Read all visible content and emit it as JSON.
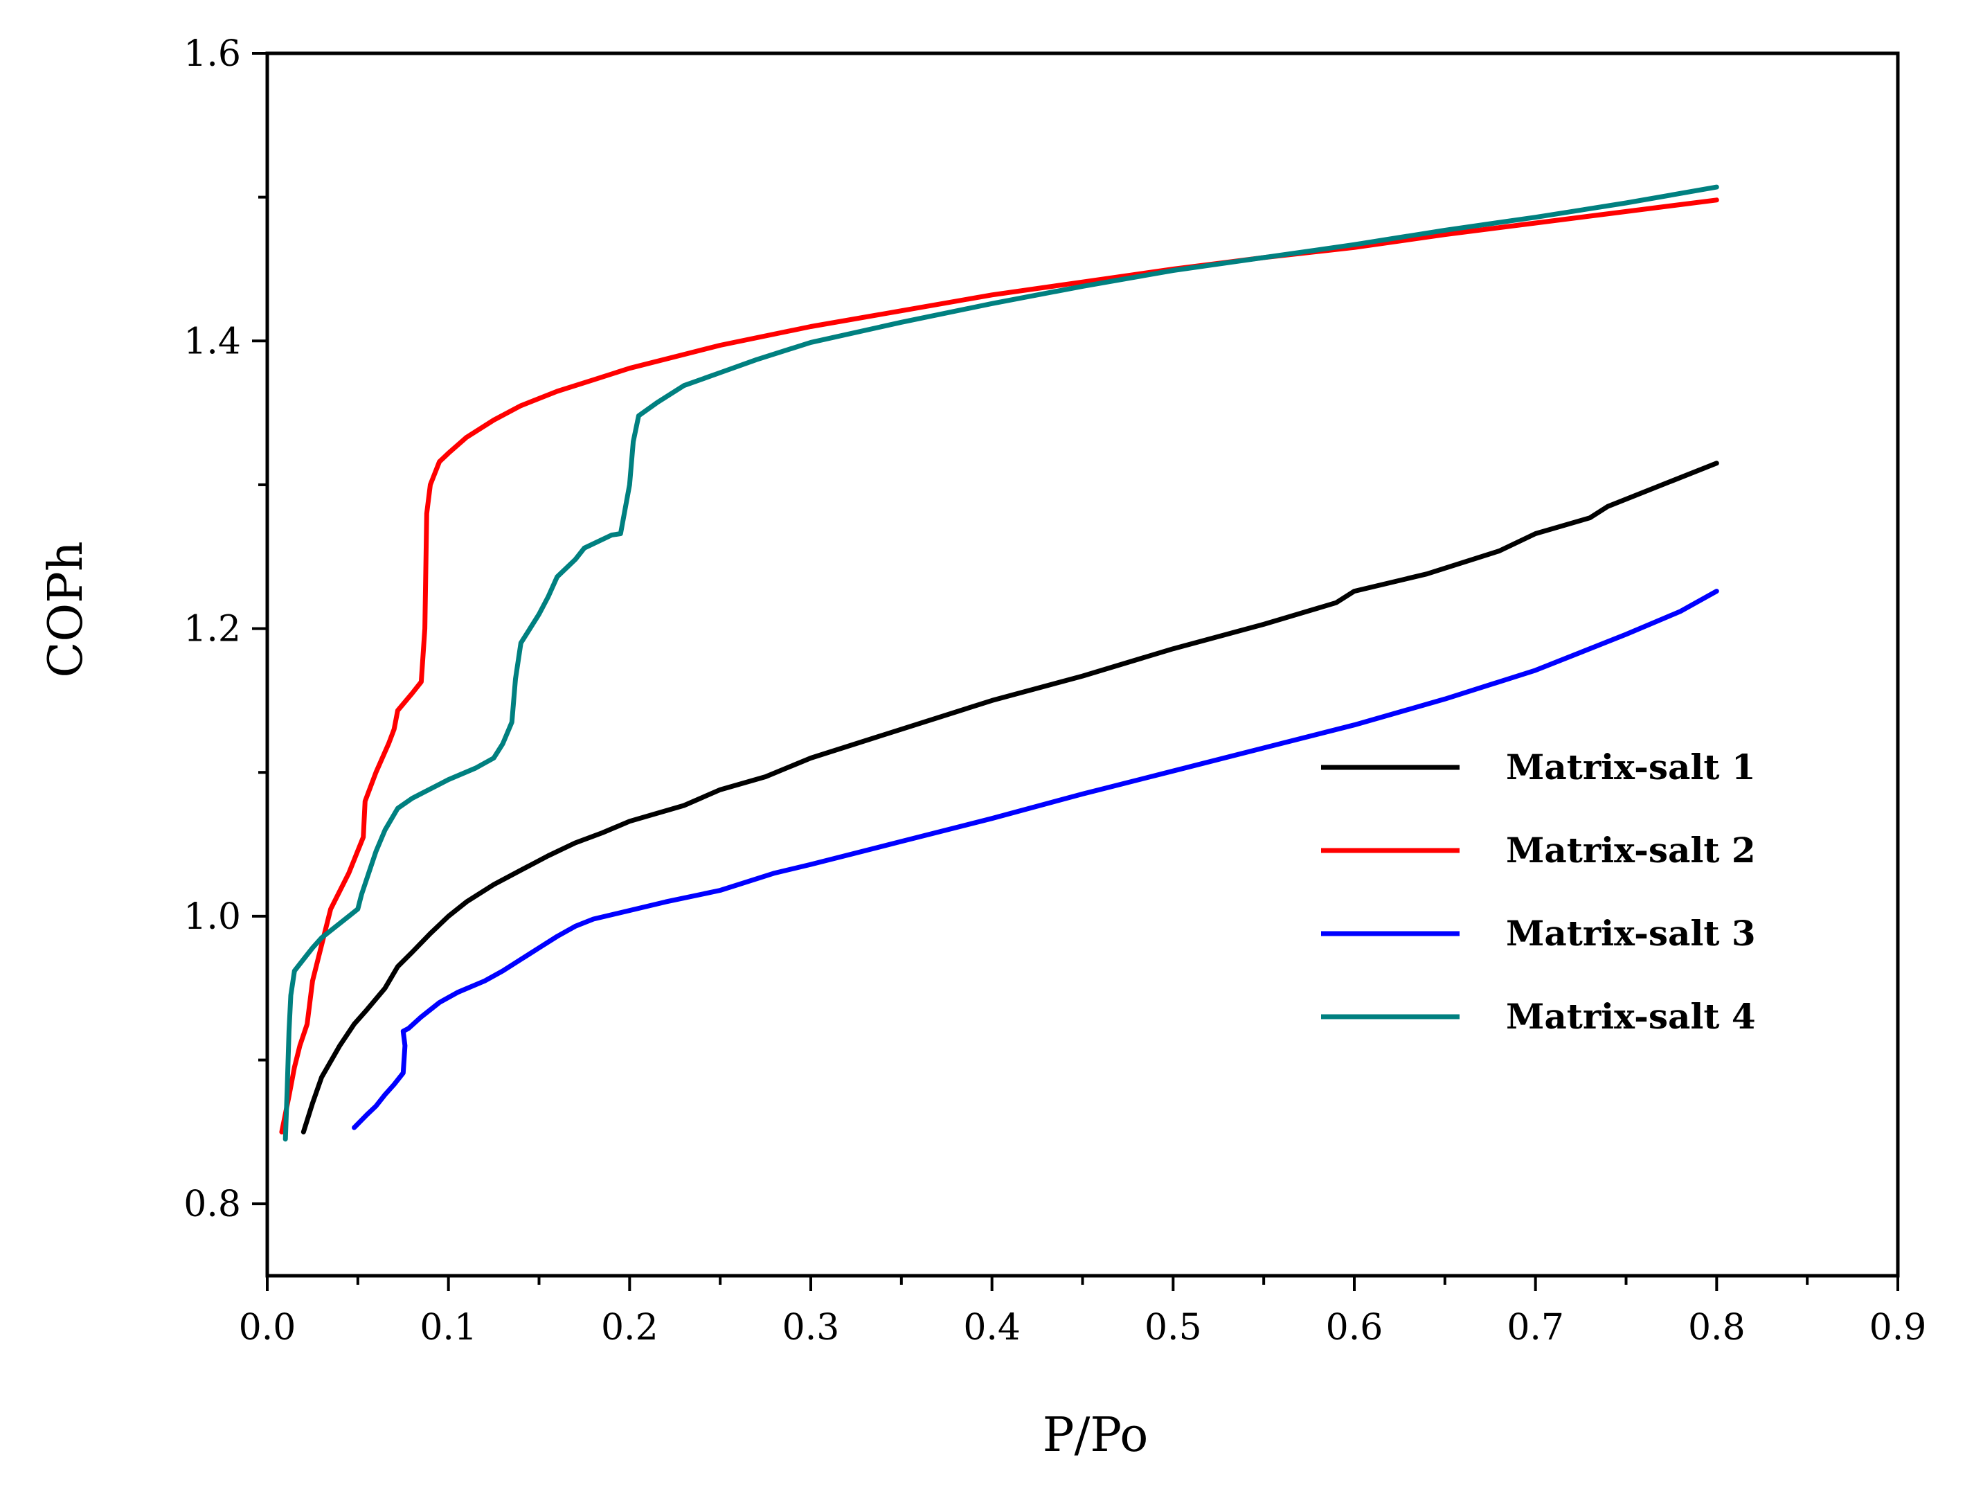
{
  "chart_data": {
    "type": "line",
    "title": "",
    "xlabel": "P/Po",
    "ylabel": "COPh",
    "xlim": [
      0.0,
      0.9
    ],
    "ylim": [
      0.75,
      1.6
    ],
    "xticks": [
      0.0,
      0.1,
      0.2,
      0.3,
      0.4,
      0.5,
      0.6,
      0.7,
      0.8,
      0.9
    ],
    "xtick_labels": [
      "0.0",
      "0.1",
      "0.2",
      "0.3",
      "0.4",
      "0.5",
      "0.6",
      "0.7",
      "0.8",
      "0.9"
    ],
    "yticks": [
      0.8,
      1.0,
      1.2,
      1.4,
      1.6
    ],
    "ytick_labels": [
      "0.8",
      "1.0",
      "1.2",
      "1.4",
      "1.6"
    ],
    "grid": false,
    "legend_position": "center-right",
    "series": [
      {
        "name": "Matrix-salt 1",
        "color": "#000000",
        "points": [
          [
            0.02,
            0.85
          ],
          [
            0.025,
            0.87
          ],
          [
            0.03,
            0.888
          ],
          [
            0.04,
            0.91
          ],
          [
            0.048,
            0.925
          ],
          [
            0.055,
            0.935
          ],
          [
            0.065,
            0.95
          ],
          [
            0.072,
            0.965
          ],
          [
            0.08,
            0.975
          ],
          [
            0.09,
            0.988
          ],
          [
            0.1,
            1.0
          ],
          [
            0.11,
            1.01
          ],
          [
            0.125,
            1.022
          ],
          [
            0.14,
            1.032
          ],
          [
            0.155,
            1.042
          ],
          [
            0.17,
            1.051
          ],
          [
            0.185,
            1.058
          ],
          [
            0.2,
            1.066
          ],
          [
            0.23,
            1.077
          ],
          [
            0.25,
            1.088
          ],
          [
            0.275,
            1.097
          ],
          [
            0.3,
            1.11
          ],
          [
            0.35,
            1.13
          ],
          [
            0.4,
            1.15
          ],
          [
            0.45,
            1.167
          ],
          [
            0.5,
            1.186
          ],
          [
            0.55,
            1.203
          ],
          [
            0.59,
            1.218
          ],
          [
            0.6,
            1.226
          ],
          [
            0.64,
            1.238
          ],
          [
            0.68,
            1.254
          ],
          [
            0.7,
            1.266
          ],
          [
            0.73,
            1.277
          ],
          [
            0.74,
            1.285
          ],
          [
            0.77,
            1.3
          ],
          [
            0.8,
            1.315
          ]
        ]
      },
      {
        "name": "Matrix-salt 2",
        "color": "#ff0000",
        "points": [
          [
            0.008,
            0.85
          ],
          [
            0.012,
            0.875
          ],
          [
            0.015,
            0.895
          ],
          [
            0.018,
            0.91
          ],
          [
            0.022,
            0.925
          ],
          [
            0.025,
            0.955
          ],
          [
            0.03,
            0.98
          ],
          [
            0.035,
            1.005
          ],
          [
            0.045,
            1.03
          ],
          [
            0.053,
            1.055
          ],
          [
            0.054,
            1.08
          ],
          [
            0.06,
            1.1
          ],
          [
            0.067,
            1.12
          ],
          [
            0.07,
            1.13
          ],
          [
            0.072,
            1.143
          ],
          [
            0.08,
            1.155
          ],
          [
            0.085,
            1.163
          ],
          [
            0.087,
            1.2
          ],
          [
            0.088,
            1.28
          ],
          [
            0.09,
            1.3
          ],
          [
            0.095,
            1.316
          ],
          [
            0.1,
            1.322
          ],
          [
            0.11,
            1.333
          ],
          [
            0.125,
            1.345
          ],
          [
            0.14,
            1.355
          ],
          [
            0.16,
            1.365
          ],
          [
            0.18,
            1.373
          ],
          [
            0.2,
            1.381
          ],
          [
            0.25,
            1.397
          ],
          [
            0.3,
            1.41
          ],
          [
            0.35,
            1.421
          ],
          [
            0.4,
            1.432
          ],
          [
            0.45,
            1.441
          ],
          [
            0.5,
            1.45
          ],
          [
            0.55,
            1.458
          ],
          [
            0.6,
            1.465
          ],
          [
            0.65,
            1.474
          ],
          [
            0.7,
            1.482
          ],
          [
            0.75,
            1.49
          ],
          [
            0.8,
            1.498
          ]
        ]
      },
      {
        "name": "Matrix-salt 3",
        "color": "#0000ff",
        "points": [
          [
            0.048,
            0.853
          ],
          [
            0.055,
            0.862
          ],
          [
            0.06,
            0.868
          ],
          [
            0.065,
            0.876
          ],
          [
            0.07,
            0.883
          ],
          [
            0.075,
            0.891
          ],
          [
            0.076,
            0.91
          ],
          [
            0.075,
            0.92
          ],
          [
            0.078,
            0.922
          ],
          [
            0.085,
            0.93
          ],
          [
            0.095,
            0.94
          ],
          [
            0.105,
            0.947
          ],
          [
            0.12,
            0.955
          ],
          [
            0.13,
            0.962
          ],
          [
            0.14,
            0.97
          ],
          [
            0.15,
            0.978
          ],
          [
            0.16,
            0.986
          ],
          [
            0.17,
            0.993
          ],
          [
            0.18,
            0.998
          ],
          [
            0.2,
            1.004
          ],
          [
            0.22,
            1.01
          ],
          [
            0.25,
            1.018
          ],
          [
            0.28,
            1.03
          ],
          [
            0.3,
            1.036
          ],
          [
            0.35,
            1.052
          ],
          [
            0.4,
            1.068
          ],
          [
            0.45,
            1.085
          ],
          [
            0.5,
            1.101
          ],
          [
            0.55,
            1.117
          ],
          [
            0.6,
            1.133
          ],
          [
            0.65,
            1.151
          ],
          [
            0.7,
            1.171
          ],
          [
            0.75,
            1.196
          ],
          [
            0.78,
            1.212
          ],
          [
            0.8,
            1.226
          ]
        ]
      },
      {
        "name": "Matrix-salt 4",
        "color": "#008080",
        "points": [
          [
            0.01,
            0.845
          ],
          [
            0.011,
            0.88
          ],
          [
            0.012,
            0.92
          ],
          [
            0.013,
            0.945
          ],
          [
            0.015,
            0.962
          ],
          [
            0.02,
            0.97
          ],
          [
            0.025,
            0.978
          ],
          [
            0.03,
            0.985
          ],
          [
            0.04,
            0.995
          ],
          [
            0.05,
            1.005
          ],
          [
            0.052,
            1.015
          ],
          [
            0.056,
            1.03
          ],
          [
            0.06,
            1.045
          ],
          [
            0.065,
            1.06
          ],
          [
            0.072,
            1.075
          ],
          [
            0.08,
            1.082
          ],
          [
            0.1,
            1.095
          ],
          [
            0.115,
            1.103
          ],
          [
            0.125,
            1.11
          ],
          [
            0.13,
            1.12
          ],
          [
            0.135,
            1.135
          ],
          [
            0.137,
            1.165
          ],
          [
            0.14,
            1.19
          ],
          [
            0.15,
            1.21
          ],
          [
            0.155,
            1.222
          ],
          [
            0.16,
            1.236
          ],
          [
            0.17,
            1.248
          ],
          [
            0.175,
            1.256
          ],
          [
            0.19,
            1.265
          ],
          [
            0.195,
            1.266
          ],
          [
            0.2,
            1.3
          ],
          [
            0.202,
            1.33
          ],
          [
            0.205,
            1.348
          ],
          [
            0.215,
            1.357
          ],
          [
            0.23,
            1.369
          ],
          [
            0.25,
            1.378
          ],
          [
            0.27,
            1.387
          ],
          [
            0.3,
            1.399
          ],
          [
            0.35,
            1.413
          ],
          [
            0.4,
            1.426
          ],
          [
            0.45,
            1.438
          ],
          [
            0.5,
            1.449
          ],
          [
            0.55,
            1.458
          ],
          [
            0.6,
            1.467
          ],
          [
            0.65,
            1.477
          ],
          [
            0.7,
            1.486
          ],
          [
            0.75,
            1.496
          ],
          [
            0.8,
            1.507
          ]
        ]
      }
    ]
  }
}
